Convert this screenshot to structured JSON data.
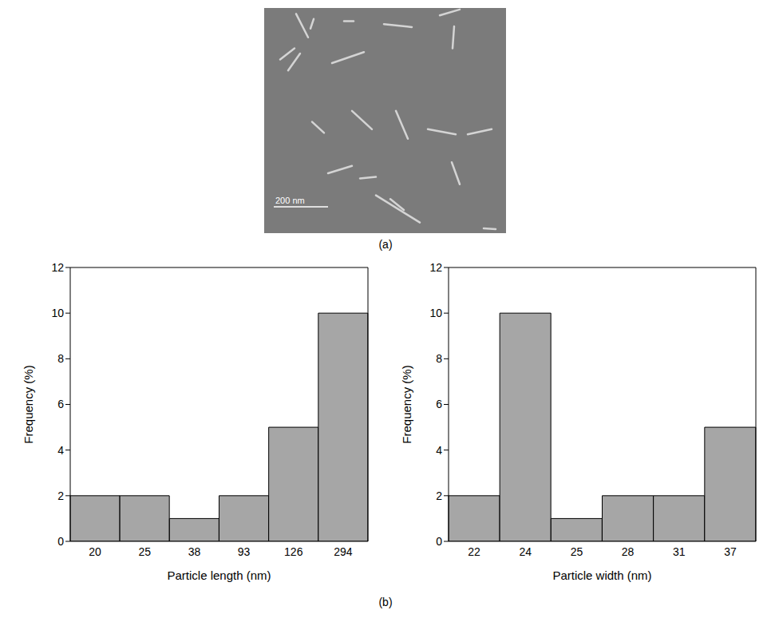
{
  "image": {
    "label": "(a)",
    "scale_bar": "200 nm"
  },
  "panel_label": "(b)",
  "chart_data": [
    {
      "type": "bar",
      "x_label": "Particle length (nm)",
      "y_label": "Frequency (%)",
      "categories": [
        "20",
        "25",
        "38",
        "93",
        "126",
        "294"
      ],
      "values": [
        2,
        2,
        1,
        2,
        5,
        10
      ],
      "color": "#a6a6a6",
      "ylim": [
        0,
        12
      ],
      "yticks": [
        0,
        2,
        4,
        6,
        8,
        10,
        12
      ],
      "grid": false
    },
    {
      "type": "bar",
      "x_label": "Particle width (nm)",
      "y_label": "Frequency (%)",
      "categories": [
        "22",
        "24",
        "25",
        "28",
        "31",
        "37"
      ],
      "values": [
        2,
        10,
        1,
        2,
        2,
        5
      ],
      "color": "#a6a6a6",
      "ylim": [
        0,
        12
      ],
      "yticks": [
        0,
        2,
        4,
        6,
        8,
        10,
        12
      ],
      "grid": false
    }
  ]
}
